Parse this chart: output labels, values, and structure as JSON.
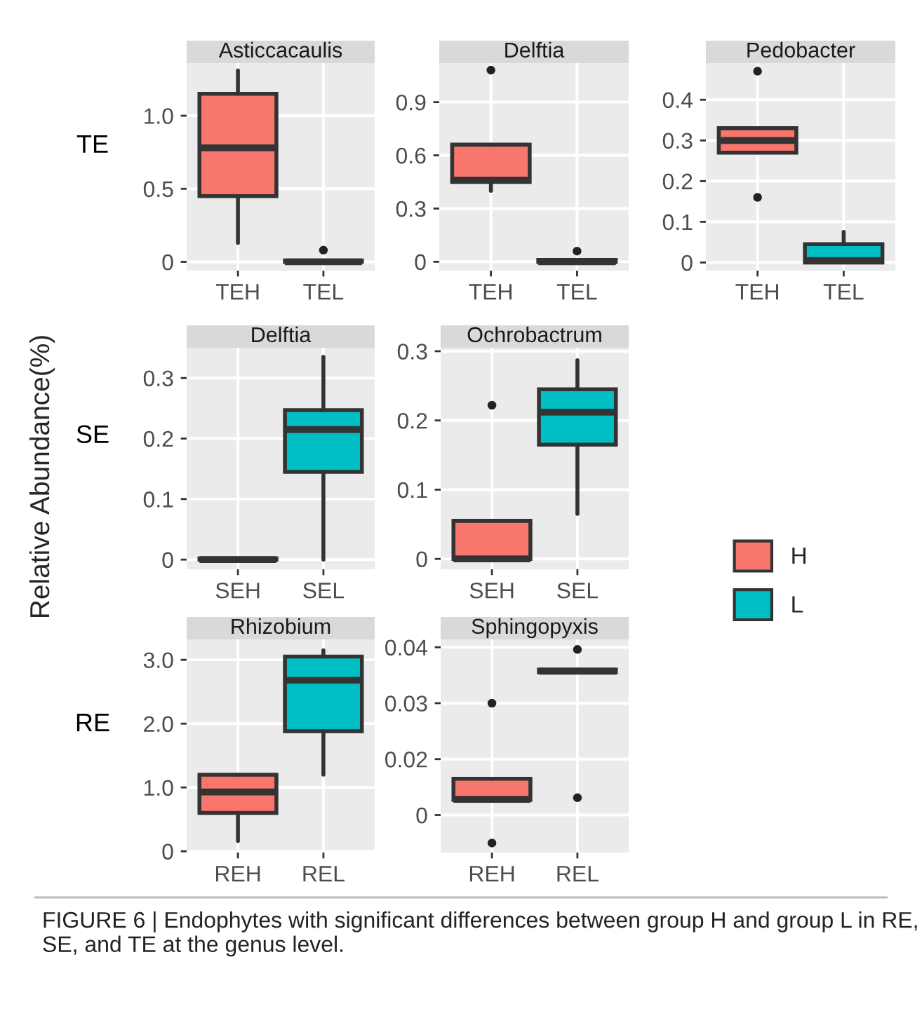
{
  "chart_data": [
    {
      "type": "box",
      "title": "Asticcacaulis",
      "ylabel": "TE",
      "categories": [
        "TEH",
        "TEL"
      ],
      "ylim": [
        -0.06,
        1.36
      ],
      "yticks": [
        {
          "value": 0,
          "label": "0"
        },
        {
          "value": 0.5,
          "label": "0.5"
        },
        {
          "value": 1.0,
          "label": "1.0"
        }
      ],
      "grid": true,
      "series": [
        {
          "color": "#f8766d",
          "boxes": [
            {
              "low": 0.13,
              "q1": 0.45,
              "median": 0.78,
              "q3": 1.15,
              "high": 1.31
            },
            null
          ]
        },
        {
          "color": "#00bfc4",
          "boxes": [
            null,
            {
              "low": 0,
              "q1": 0,
              "median": 0,
              "q3": 0.01,
              "high": 0.01,
              "outliers": [
                0.08
              ]
            }
          ]
        }
      ]
    },
    {
      "type": "box",
      "title": "Delftia",
      "categories": [
        "TEH",
        "TEL"
      ],
      "ylim": [
        -0.05,
        1.12
      ],
      "yticks": [
        {
          "value": 0,
          "label": "0"
        },
        {
          "value": 0.3,
          "label": "0.3"
        },
        {
          "value": 0.6,
          "label": "0.6"
        },
        {
          "value": 0.9,
          "label": "0.9"
        }
      ],
      "grid": true,
      "series": [
        {
          "color": "#f8766d",
          "boxes": [
            {
              "low": 0.4,
              "q1": 0.45,
              "median": 0.46,
              "q3": 0.66,
              "high": 0.66,
              "outliers": [
                1.08
              ]
            },
            null
          ]
        },
        {
          "color": "#00bfc4",
          "boxes": [
            null,
            {
              "low": 0,
              "q1": 0,
              "median": 0,
              "q3": 0.01,
              "high": 0.01,
              "outliers": [
                0.06
              ]
            }
          ]
        }
      ]
    },
    {
      "type": "box",
      "title": "Pedobacter",
      "categories": [
        "TEH",
        "TEL"
      ],
      "ylim": [
        -0.02,
        0.49
      ],
      "yticks": [
        0,
        0.1,
        0.2,
        0.3,
        0.4
      ],
      "grid": true,
      "series": [
        {
          "color": "#f8766d",
          "boxes": [
            {
              "low": 0.27,
              "q1": 0.27,
              "median": 0.3,
              "q3": 0.33,
              "high": 0.33,
              "outliers": [
                0.16,
                0.47
              ]
            },
            null
          ]
        },
        {
          "color": "#00bfc4",
          "boxes": [
            null,
            {
              "low": 0,
              "q1": 0,
              "median": 0.005,
              "q3": 0.045,
              "high": 0.075
            }
          ]
        }
      ]
    },
    {
      "type": "box",
      "title": "Delftia",
      "ylabel": "SE",
      "annotations": [
        "Relative Abundance(%)"
      ],
      "categories": [
        "SEH",
        "SEL"
      ],
      "ylim": [
        -0.016,
        0.35
      ],
      "yticks": [
        0,
        0.1,
        0.2,
        0.3
      ],
      "grid": true,
      "series": [
        {
          "color": "#f8766d",
          "boxes": [
            {
              "low": 0,
              "q1": 0,
              "median": 0,
              "q3": 0.002,
              "high": 0.002
            },
            null
          ]
        },
        {
          "color": "#00bfc4",
          "boxes": [
            null,
            {
              "low": 0,
              "q1": 0.145,
              "median": 0.215,
              "q3": 0.247,
              "high": 0.335
            }
          ]
        }
      ]
    },
    {
      "type": "box",
      "title": "Ochrobactrum",
      "legend": "right",
      "categories": [
        "SEH",
        "SEL"
      ],
      "ylim": [
        -0.015,
        0.305
      ],
      "yticks": [
        0,
        0.1,
        0.2,
        0.3
      ],
      "grid": true,
      "series": [
        {
          "name": "H",
          "color": "#f8766d",
          "boxes": [
            {
              "low": 0,
              "q1": 0,
              "median": 0,
              "q3": 0.055,
              "high": 0.055,
              "outliers": [
                0.222
              ]
            },
            null
          ]
        },
        {
          "name": "L",
          "color": "#00bfc4",
          "boxes": [
            null,
            {
              "low": 0.065,
              "q1": 0.165,
              "median": 0.212,
              "q3": 0.245,
              "high": 0.287
            }
          ]
        }
      ]
    },
    {
      "type": "box",
      "title": "Rhizobium",
      "ylabel": "RE",
      "categories": [
        "REH",
        "REL"
      ],
      "ylim": [
        -0.02,
        3.32
      ],
      "yticks": [
        {
          "value": 0,
          "label": "0"
        },
        {
          "value": 1.0,
          "label": "1.0"
        },
        {
          "value": 2.0,
          "label": "2.0"
        },
        {
          "value": 3.0,
          "label": "3.0"
        }
      ],
      "grid": true,
      "series": [
        {
          "color": "#f8766d",
          "boxes": [
            {
              "low": 0.16,
              "q1": 0.6,
              "median": 0.93,
              "q3": 1.2,
              "high": 1.2
            },
            null
          ]
        },
        {
          "color": "#00bfc4",
          "boxes": [
            null,
            {
              "low": 1.2,
              "q1": 1.88,
              "median": 2.68,
              "q3": 3.05,
              "high": 3.15
            }
          ]
        }
      ]
    },
    {
      "type": "box",
      "title": "Sphingopyxis",
      "annotations": [
        "FIGURE 6 | Endophytes with significant differences between group H and group L in RE, SE, and TE at the genus level."
      ],
      "categories": [
        "REH",
        "REL"
      ],
      "ylim": [
        0.0033,
        0.0414
      ],
      "yticks": [
        {
          "value": 0.01,
          "label": "0"
        },
        {
          "value": 0.02,
          "label": "0.02"
        },
        {
          "value": 0.03,
          "label": "0.03"
        },
        {
          "value": 0.04,
          "label": "0.04"
        }
      ],
      "grid": true,
      "series": [
        {
          "color": "#f8766d",
          "boxes": [
            {
              "low": 0.0127,
              "q1": 0.0127,
              "median": 0.0128,
              "q3": 0.0165,
              "high": 0.0165,
              "outliers": [
                0.005,
                0.03
              ]
            },
            null
          ]
        },
        {
          "color": "#00bfc4",
          "boxes": [
            null,
            {
              "low": 0.0355,
              "q1": 0.0355,
              "median": 0.0357,
              "q3": 0.036,
              "high": 0.036,
              "outliers": [
                0.0131,
                0.0396
              ]
            }
          ]
        }
      ]
    }
  ]
}
